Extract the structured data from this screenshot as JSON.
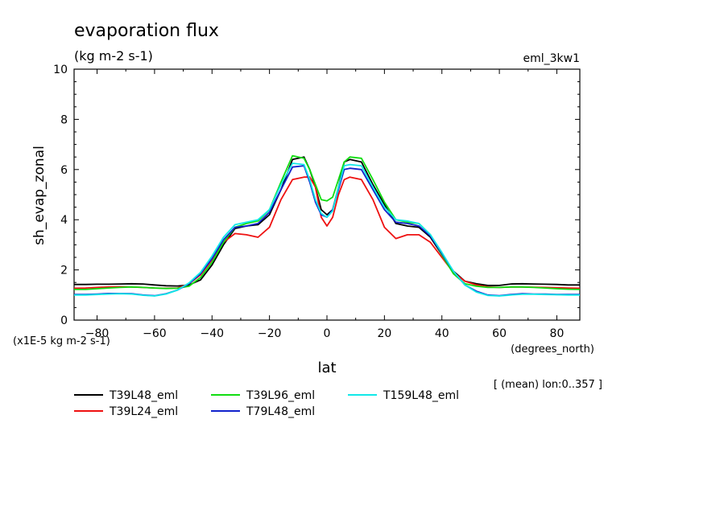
{
  "chart_data": {
    "type": "line",
    "title": "evaporation flux",
    "subtitle": "(kg m-2 s-1)",
    "experiment": "eml_3kw1",
    "ylabel": "sh_evap_zonal",
    "xlabel": "lat",
    "xunits": "(degrees_north)",
    "yscale_note": "(x1E-5 kg m-2 s-1)",
    "stats_note": "[ (mean) lon:0..357 ]",
    "xlim": [
      -88,
      88
    ],
    "ylim": [
      0,
      10
    ],
    "xticks": [
      -80,
      -60,
      -40,
      -20,
      0,
      20,
      40,
      60,
      80
    ],
    "yticks": [
      0,
      2,
      4,
      6,
      8,
      10
    ],
    "x": [
      -88,
      -84,
      -80,
      -76,
      -72,
      -68,
      -64,
      -60,
      -56,
      -52,
      -48,
      -44,
      -40,
      -36,
      -32,
      -28,
      -24,
      -20,
      -16,
      -12,
      -8,
      -6,
      -4,
      -2,
      0,
      2,
      4,
      6,
      8,
      12,
      16,
      20,
      24,
      28,
      32,
      36,
      40,
      44,
      48,
      52,
      56,
      60,
      64,
      68,
      72,
      76,
      80,
      84,
      88
    ],
    "series": [
      {
        "name": "T39L48_eml",
        "color": "#000000",
        "values": [
          1.42,
          1.42,
          1.43,
          1.43,
          1.44,
          1.45,
          1.44,
          1.4,
          1.37,
          1.36,
          1.4,
          1.6,
          2.2,
          3.0,
          3.65,
          3.75,
          3.8,
          4.2,
          5.2,
          6.4,
          6.5,
          6.0,
          5.3,
          4.4,
          4.2,
          4.4,
          5.3,
          6.3,
          6.4,
          6.3,
          5.4,
          4.6,
          3.85,
          3.75,
          3.7,
          3.3,
          2.6,
          1.95,
          1.55,
          1.45,
          1.38,
          1.38,
          1.44,
          1.45,
          1.44,
          1.43,
          1.42,
          1.4,
          1.4
        ]
      },
      {
        "name": "T39L24_eml",
        "color": "#ee1111",
        "values": [
          1.27,
          1.28,
          1.3,
          1.32,
          1.33,
          1.32,
          1.3,
          1.28,
          1.27,
          1.28,
          1.45,
          1.8,
          2.4,
          3.1,
          3.45,
          3.4,
          3.3,
          3.7,
          4.8,
          5.6,
          5.7,
          5.7,
          5.3,
          4.1,
          3.75,
          4.1,
          5.0,
          5.6,
          5.7,
          5.6,
          4.8,
          3.7,
          3.25,
          3.4,
          3.4,
          3.1,
          2.5,
          1.9,
          1.55,
          1.4,
          1.32,
          1.3,
          1.32,
          1.32,
          1.31,
          1.3,
          1.29,
          1.28,
          1.27
        ]
      },
      {
        "name": "T39L96_eml",
        "color": "#11dd11",
        "values": [
          1.22,
          1.22,
          1.25,
          1.28,
          1.3,
          1.32,
          1.3,
          1.28,
          1.26,
          1.27,
          1.35,
          1.7,
          2.3,
          3.1,
          3.7,
          3.85,
          3.95,
          4.4,
          5.5,
          6.55,
          6.45,
          6.0,
          5.4,
          4.8,
          4.75,
          4.9,
          5.6,
          6.3,
          6.5,
          6.45,
          5.6,
          4.7,
          4.0,
          3.9,
          3.85,
          3.4,
          2.6,
          1.85,
          1.45,
          1.35,
          1.3,
          1.3,
          1.32,
          1.32,
          1.3,
          1.28,
          1.25,
          1.23,
          1.22
        ]
      },
      {
        "name": "T79L48_eml",
        "color": "#1122cc",
        "values": [
          1.02,
          1.02,
          1.04,
          1.06,
          1.06,
          1.05,
          1.0,
          0.97,
          1.05,
          1.2,
          1.45,
          1.85,
          2.45,
          3.2,
          3.7,
          3.75,
          3.85,
          4.3,
          5.2,
          6.1,
          6.15,
          5.5,
          4.7,
          4.2,
          4.1,
          4.4,
          5.2,
          6.0,
          6.05,
          6.0,
          5.2,
          4.4,
          3.9,
          3.85,
          3.75,
          3.35,
          2.65,
          1.95,
          1.4,
          1.15,
          1.0,
          0.97,
          1.02,
          1.05,
          1.04,
          1.04,
          1.02,
          1.02,
          1.02
        ]
      },
      {
        "name": "T159L48_eml",
        "color": "#11e8e8",
        "values": [
          1.0,
          1.0,
          1.02,
          1.04,
          1.05,
          1.04,
          0.99,
          0.96,
          1.04,
          1.2,
          1.48,
          1.9,
          2.55,
          3.3,
          3.8,
          3.9,
          4.0,
          4.4,
          5.4,
          6.25,
          6.2,
          5.6,
          4.8,
          4.25,
          4.1,
          4.35,
          5.3,
          6.15,
          6.2,
          6.15,
          5.3,
          4.5,
          4.0,
          3.95,
          3.85,
          3.4,
          2.7,
          1.95,
          1.4,
          1.12,
          0.98,
          0.96,
          1.0,
          1.03,
          1.03,
          1.02,
          1.01,
          1.0,
          1.0
        ]
      }
    ]
  }
}
